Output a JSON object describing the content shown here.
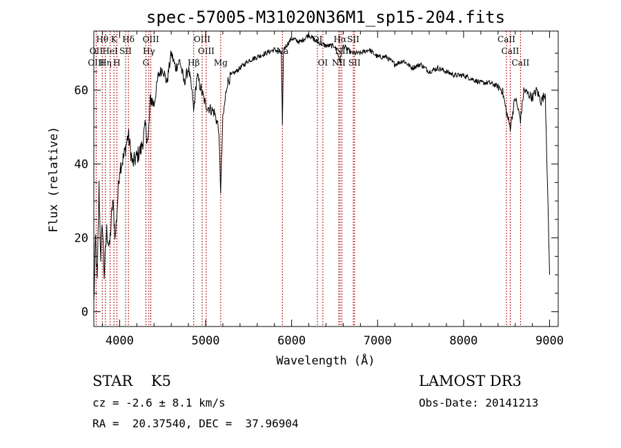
{
  "chart_data": {
    "type": "line",
    "title": "spec-57005-M31020N36M1_sp15-204.fits",
    "xlabel": "Wavelength (Å)",
    "ylabel": "Flux (relative)",
    "xlim": [
      3700,
      9100
    ],
    "ylim": [
      -4,
      76
    ],
    "x_ticks": [
      4000,
      5000,
      6000,
      7000,
      8000,
      9000
    ],
    "y_ticks": [
      0,
      20,
      40,
      60
    ],
    "x_tick_labels": [
      "4000",
      "5000",
      "6000",
      "7000",
      "8000",
      "9000"
    ],
    "y_tick_labels": [
      "0",
      "20",
      "40",
      "60"
    ],
    "series": [
      {
        "name": "flux",
        "points": [
          [
            3700,
            2
          ],
          [
            3720,
            20
          ],
          [
            3740,
            8
          ],
          [
            3760,
            34
          ],
          [
            3780,
            15
          ],
          [
            3800,
            24
          ],
          [
            3820,
            10
          ],
          [
            3850,
            22
          ],
          [
            3880,
            17
          ],
          [
            3920,
            30
          ],
          [
            3950,
            20
          ],
          [
            4000,
            39
          ],
          [
            4050,
            42
          ],
          [
            4100,
            48
          ],
          [
            4150,
            40
          ],
          [
            4200,
            42
          ],
          [
            4250,
            44
          ],
          [
            4300,
            50
          ],
          [
            4330,
            46
          ],
          [
            4360,
            58
          ],
          [
            4400,
            56
          ],
          [
            4450,
            64
          ],
          [
            4500,
            66
          ],
          [
            4550,
            62
          ],
          [
            4600,
            70
          ],
          [
            4650,
            66
          ],
          [
            4700,
            68
          ],
          [
            4750,
            62
          ],
          [
            4800,
            66
          ],
          [
            4850,
            58
          ],
          [
            4860,
            54
          ],
          [
            4900,
            64
          ],
          [
            4950,
            60
          ],
          [
            5000,
            56
          ],
          [
            5050,
            55
          ],
          [
            5100,
            54
          ],
          [
            5150,
            50
          ],
          [
            5175,
            33
          ],
          [
            5200,
            52
          ],
          [
            5250,
            62
          ],
          [
            5300,
            64
          ],
          [
            5400,
            66
          ],
          [
            5500,
            68
          ],
          [
            5600,
            69
          ],
          [
            5700,
            70
          ],
          [
            5800,
            71
          ],
          [
            5880,
            70
          ],
          [
            5893,
            50
          ],
          [
            5905,
            71
          ],
          [
            6000,
            74
          ],
          [
            6100,
            73
          ],
          [
            6200,
            75
          ],
          [
            6300,
            73
          ],
          [
            6400,
            72
          ],
          [
            6500,
            72
          ],
          [
            6563,
            68
          ],
          [
            6600,
            72
          ],
          [
            6700,
            70
          ],
          [
            6800,
            70
          ],
          [
            6900,
            71
          ],
          [
            7000,
            69
          ],
          [
            7100,
            69
          ],
          [
            7200,
            67
          ],
          [
            7300,
            68
          ],
          [
            7400,
            66
          ],
          [
            7500,
            67
          ],
          [
            7600,
            65
          ],
          [
            7700,
            66
          ],
          [
            7800,
            65
          ],
          [
            7900,
            64
          ],
          [
            8000,
            64
          ],
          [
            8100,
            63
          ],
          [
            8200,
            62
          ],
          [
            8300,
            62
          ],
          [
            8400,
            61
          ],
          [
            8450,
            60
          ],
          [
            8498,
            54
          ],
          [
            8542,
            50
          ],
          [
            8600,
            58
          ],
          [
            8662,
            52
          ],
          [
            8700,
            60
          ],
          [
            8750,
            59
          ],
          [
            8800,
            58
          ],
          [
            8850,
            60
          ],
          [
            8900,
            57
          ],
          [
            8950,
            59
          ],
          [
            9000,
            10
          ]
        ]
      }
    ],
    "line_labels": [
      {
        "label": "Hθ",
        "wavelength": 3798,
        "row": 1
      },
      {
        "label": "K",
        "wavelength": 3934,
        "row": 1
      },
      {
        "label": "Hδ",
        "wavelength": 4102,
        "row": 1
      },
      {
        "label": "OIII",
        "wavelength": 4363,
        "row": 1
      },
      {
        "label": "OIII",
        "wavelength": 4959,
        "row": 1
      },
      {
        "label": "OI",
        "wavelength": 6300,
        "row": 1
      },
      {
        "label": "Hα",
        "wavelength": 6563,
        "row": 1
      },
      {
        "label": "SII",
        "wavelength": 6717,
        "row": 1
      },
      {
        "label": "CaII",
        "wavelength": 8498,
        "row": 1
      },
      {
        "label": "OII",
        "wavelength": 3727,
        "row": 2
      },
      {
        "label": "HeI",
        "wavelength": 3889,
        "row": 2
      },
      {
        "label": "SII",
        "wavelength": 4069,
        "row": 2
      },
      {
        "label": "Hγ",
        "wavelength": 4340,
        "row": 2
      },
      {
        "label": "OIII",
        "wavelength": 5007,
        "row": 2
      },
      {
        "label": "Na",
        "wavelength": 5893,
        "row": 2
      },
      {
        "label": "NII",
        "wavelength": 6584,
        "row": 2
      },
      {
        "label": "CaII",
        "wavelength": 8542,
        "row": 2
      },
      {
        "label": "OIII",
        "wavelength": 3727,
        "row": 3
      },
      {
        "label": "Hη",
        "wavelength": 3835,
        "row": 3
      },
      {
        "label": "H",
        "wavelength": 3968,
        "row": 3
      },
      {
        "label": "G",
        "wavelength": 4305,
        "row": 3
      },
      {
        "label": "Hβ",
        "wavelength": 4861,
        "row": 3
      },
      {
        "label": "Mg",
        "wavelength": 5175,
        "row": 3
      },
      {
        "label": "OI",
        "wavelength": 6363,
        "row": 3
      },
      {
        "label": "NII",
        "wavelength": 6548,
        "row": 3
      },
      {
        "label": "SII",
        "wavelength": 6731,
        "row": 3
      },
      {
        "label": "CaII",
        "wavelength": 8662,
        "row": 3
      }
    ],
    "line_marker_wavelengths": [
      3727,
      3798,
      3835,
      3889,
      3934,
      3968,
      4069,
      4102,
      4305,
      4340,
      4363,
      4861,
      4959,
      5007,
      5175,
      5893,
      6300,
      6363,
      6548,
      6563,
      6584,
      6717,
      6731,
      8498,
      8542,
      8662
    ],
    "colors": {
      "spectrum": "#000000",
      "line_marker": "#b00000",
      "axes": "#000000"
    }
  },
  "info": {
    "class_line": "STAR    K5",
    "survey": "LAMOST DR3",
    "cz": "cz = -2.6 ± 8.1 km/s",
    "obs_date": "Obs-Date: 20141213",
    "radec": "RA =  20.37540, DEC =  37.96904"
  }
}
